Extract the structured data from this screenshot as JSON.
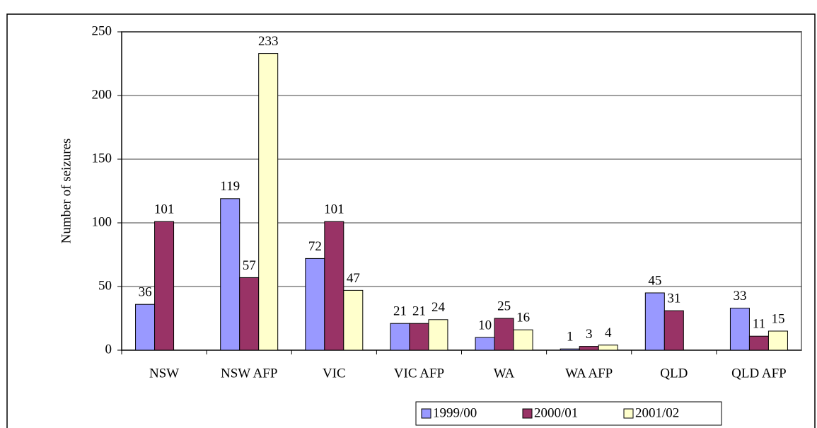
{
  "chart_data": {
    "type": "bar",
    "y_label": "Number of seizures",
    "categories": [
      "NSW",
      "NSW AFP",
      "VIC",
      "VIC AFP",
      "WA",
      "WA AFP",
      "QLD",
      "QLD AFP"
    ],
    "series": [
      {
        "name": "1999/00",
        "color": "#9999ff",
        "values": [
          36,
          119,
          72,
          21,
          10,
          1,
          45,
          33
        ]
      },
      {
        "name": "2000/01",
        "color": "#993366",
        "values": [
          101,
          57,
          101,
          21,
          25,
          3,
          31,
          11
        ]
      },
      {
        "name": "2001/02",
        "color": "#ffffcc",
        "values": [
          null,
          233,
          47,
          24,
          16,
          4,
          null,
          15
        ]
      }
    ],
    "ylim": [
      0,
      250
    ],
    "yticks": [
      0,
      50,
      100,
      150,
      200,
      250
    ],
    "grid": true,
    "legend": "bottom"
  }
}
